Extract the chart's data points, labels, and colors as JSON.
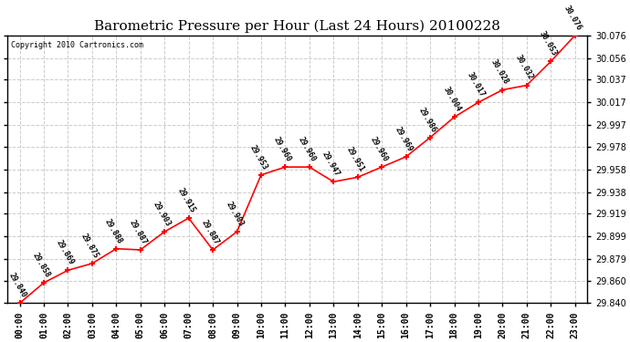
{
  "title": "Barometric Pressure per Hour (Last 24 Hours) 20100228",
  "copyright": "Copyright 2010 Cartronics.com",
  "hours": [
    "00:00",
    "01:00",
    "02:00",
    "03:00",
    "04:00",
    "05:00",
    "06:00",
    "07:00",
    "08:00",
    "09:00",
    "10:00",
    "11:00",
    "12:00",
    "13:00",
    "14:00",
    "15:00",
    "16:00",
    "17:00",
    "18:00",
    "19:00",
    "20:00",
    "21:00",
    "22:00",
    "23:00"
  ],
  "values": [
    29.84,
    29.858,
    29.869,
    29.875,
    29.888,
    29.887,
    29.903,
    29.915,
    29.887,
    29.903,
    29.953,
    29.96,
    29.96,
    29.947,
    29.951,
    29.96,
    29.969,
    29.986,
    30.004,
    30.017,
    30.028,
    30.032,
    30.053,
    30.076
  ],
  "ylim_min": 29.84,
  "ylim_max": 30.076,
  "yticks": [
    29.84,
    29.86,
    29.879,
    29.899,
    29.919,
    29.938,
    29.958,
    29.978,
    29.997,
    30.017,
    30.037,
    30.056,
    30.076
  ],
  "line_color": "red",
  "marker_color": "red",
  "bg_color": "white",
  "grid_color": "#cccccc",
  "title_fontsize": 11,
  "tick_fontsize": 7,
  "annotation_fontsize": 6,
  "annotation_rotation": -60
}
